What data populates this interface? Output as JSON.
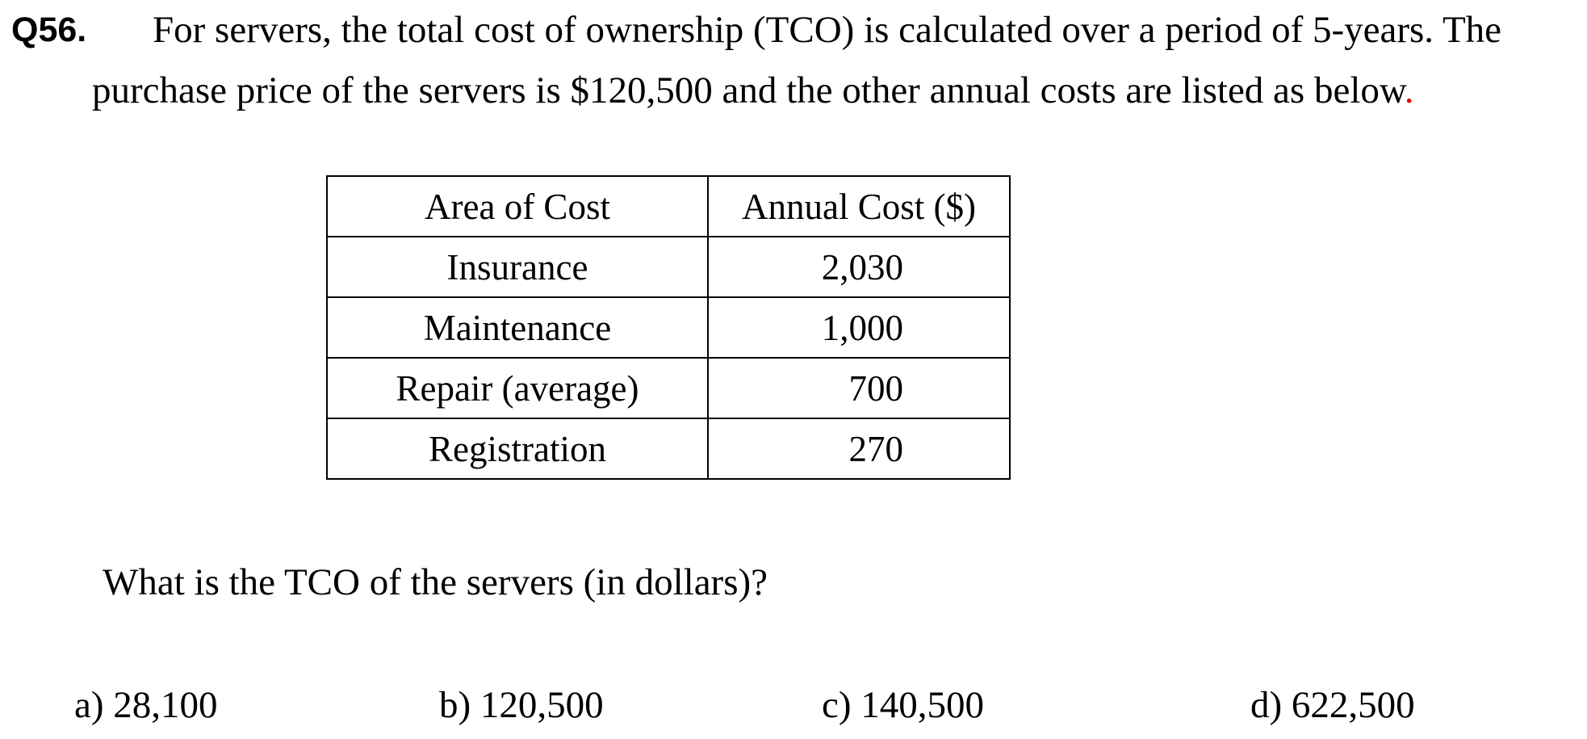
{
  "question": {
    "number": "Q56.",
    "stem_line_1": "For servers, the total cost of ownership (TCO) is calculated over a period of 5-years. The",
    "stem_line_2": "purchase price of the servers is $120,500 and the other annual costs are listed as below",
    "stem_end_mark": ".",
    "prompt": "What is the TCO of the servers (in dollars)?"
  },
  "table": {
    "headers": [
      "Area of Cost",
      "Annual Cost ($)"
    ],
    "rows": [
      {
        "area": "Insurance",
        "cost": "2,030"
      },
      {
        "area": "Maintenance",
        "cost": "1,000"
      },
      {
        "area": "Repair (average)",
        "cost": "700"
      },
      {
        "area": "Registration",
        "cost": "270"
      }
    ]
  },
  "options": [
    {
      "label": "a) 28,100"
    },
    {
      "label": "b) 120,500"
    },
    {
      "label": "c) 140,500"
    },
    {
      "label": "d) 622,500"
    }
  ],
  "colors": {
    "text": "#000000",
    "end_mark": "#e00000",
    "background": "#ffffff"
  }
}
